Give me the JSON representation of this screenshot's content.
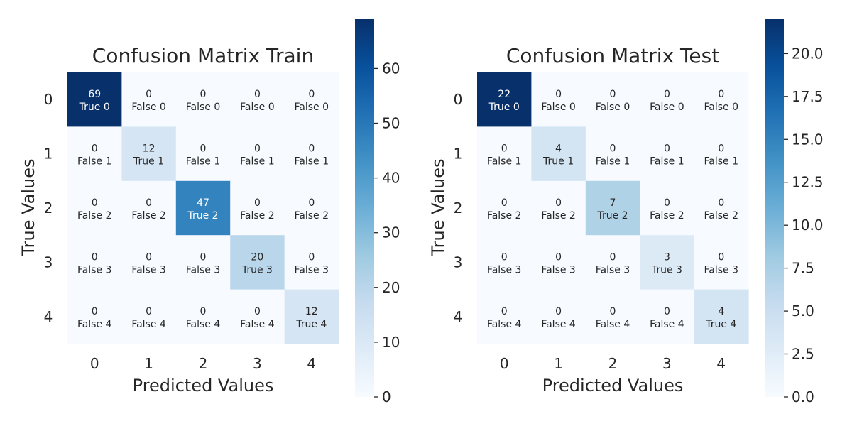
{
  "chart_data": [
    {
      "type": "heatmap",
      "title": "Confusion Matrix Train",
      "xlabel": "Predicted Values",
      "ylabel": "True Values",
      "x_categories": [
        "0",
        "1",
        "2",
        "3",
        "4"
      ],
      "y_categories": [
        "0",
        "1",
        "2",
        "3",
        "4"
      ],
      "values": [
        [
          69,
          0,
          0,
          0,
          0
        ],
        [
          0,
          12,
          0,
          0,
          0
        ],
        [
          0,
          0,
          47,
          0,
          0
        ],
        [
          0,
          0,
          0,
          20,
          0
        ],
        [
          0,
          0,
          0,
          0,
          12
        ]
      ],
      "cell_labels": [
        [
          "True 0",
          "False 0",
          "False 0",
          "False 0",
          "False 0"
        ],
        [
          "False 1",
          "True 1",
          "False 1",
          "False 1",
          "False 1"
        ],
        [
          "False 2",
          "False 2",
          "True 2",
          "False 2",
          "False 2"
        ],
        [
          "False 3",
          "False 3",
          "False 3",
          "True 3",
          "False 3"
        ],
        [
          "False 4",
          "False 4",
          "False 4",
          "False 4",
          "True 4"
        ]
      ],
      "colormap": "Blues",
      "colorbar": {
        "min": 0,
        "max": 69,
        "ticks": [
          "0",
          "10",
          "20",
          "30",
          "40",
          "50",
          "60"
        ]
      }
    },
    {
      "type": "heatmap",
      "title": "Confusion Matrix Test",
      "xlabel": "Predicted Values",
      "ylabel": "True Values",
      "x_categories": [
        "0",
        "1",
        "2",
        "3",
        "4"
      ],
      "y_categories": [
        "0",
        "1",
        "2",
        "3",
        "4"
      ],
      "values": [
        [
          22,
          0,
          0,
          0,
          0
        ],
        [
          0,
          4,
          0,
          0,
          0
        ],
        [
          0,
          0,
          7,
          0,
          0
        ],
        [
          0,
          0,
          0,
          3,
          0
        ],
        [
          0,
          0,
          0,
          0,
          4
        ]
      ],
      "cell_labels": [
        [
          "True 0",
          "False 0",
          "False 0",
          "False 0",
          "False 0"
        ],
        [
          "False 1",
          "True 1",
          "False 1",
          "False 1",
          "False 1"
        ],
        [
          "False 2",
          "False 2",
          "True 2",
          "False 2",
          "False 2"
        ],
        [
          "False 3",
          "False 3",
          "False 3",
          "True 3",
          "False 3"
        ],
        [
          "False 4",
          "False 4",
          "False 4",
          "False 4",
          "True 4"
        ]
      ],
      "colormap": "Blues",
      "colorbar": {
        "min": 0,
        "max": 22,
        "ticks": [
          "0.0",
          "2.5",
          "5.0",
          "7.5",
          "10.0",
          "12.5",
          "15.0",
          "17.5",
          "20.0"
        ]
      }
    }
  ]
}
